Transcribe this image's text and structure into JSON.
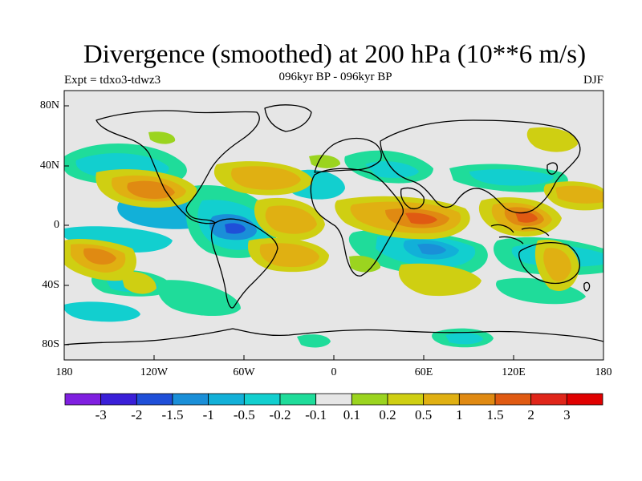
{
  "title": "Divergence (smoothed) at 200 hPa (10**6 m/s)",
  "subtitle_left": "Expt = tdxo3-tdwz3",
  "subtitle_center": "096kyr BP - 096kyr BP",
  "subtitle_right": "DJF",
  "map": {
    "lat_labels": [
      "80N",
      "40N",
      "0",
      "40S",
      "80S"
    ],
    "lon_labels": [
      "180",
      "120W",
      "60W",
      "0",
      "60E",
      "120E",
      "180"
    ],
    "background_color": "#e6e6e6"
  },
  "colorbar": {
    "labels": [
      "-3",
      "-2",
      "-1.5",
      "-1",
      "-0.5",
      "-0.2",
      "-0.1",
      "0.1",
      "0.2",
      "0.5",
      "1",
      "1.5",
      "2",
      "3"
    ],
    "colors": [
      "#7f1fe0",
      "#3a1fd8",
      "#1f4fd8",
      "#1a8fd8",
      "#12b0d8",
      "#12cfcf",
      "#1fdc9a",
      "#e6e6e6",
      "#9bd41f",
      "#cfcf12",
      "#e0b012",
      "#e08a12",
      "#e05a12",
      "#e0261a",
      "#e00000"
    ]
  }
}
